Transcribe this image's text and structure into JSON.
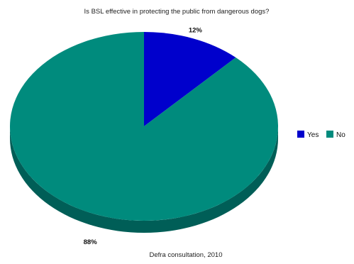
{
  "chart_data": {
    "type": "pie",
    "title": "Is BSL effective in protecting the public from dangerous dogs?",
    "categories": [
      "Yes",
      "No"
    ],
    "values": [
      12,
      88
    ],
    "data_labels": [
      "12%",
      "88%"
    ],
    "colors": [
      "#0000cc",
      "#008b7d"
    ],
    "side_colors": [
      "#000080",
      "#005e57"
    ],
    "legend": {
      "placement": "right",
      "entries": [
        "Yes",
        "No"
      ]
    },
    "source": "Defra consultation, 2010",
    "style": "3d"
  }
}
